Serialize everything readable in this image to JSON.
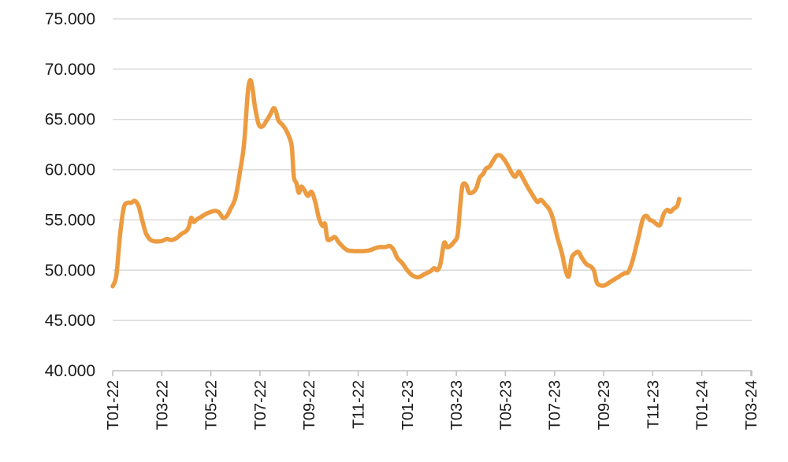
{
  "chart_data": {
    "type": "line",
    "title": "",
    "xlabel": "",
    "ylabel": "",
    "ylim": [
      40000,
      75000
    ],
    "yticks": [
      {
        "value": 40000,
        "label": "40.000"
      },
      {
        "value": 45000,
        "label": "45.000"
      },
      {
        "value": 50000,
        "label": "50.000"
      },
      {
        "value": 55000,
        "label": "55.000"
      },
      {
        "value": 60000,
        "label": "60.000"
      },
      {
        "value": 65000,
        "label": "65.000"
      },
      {
        "value": 70000,
        "label": "70.000"
      },
      {
        "value": 75000,
        "label": "75.000"
      }
    ],
    "xticks": [
      "T01-22",
      "T03-22",
      "T05-22",
      "T07-22",
      "T09-22",
      "T11-22",
      "T01-23",
      "T03-23",
      "T05-23",
      "T07-23",
      "T09-23",
      "T11-23",
      "T01-24",
      "T03-24"
    ],
    "x_range_months": [
      0,
      26.1
    ],
    "grid": true,
    "legend": "none",
    "color": "#ED9B40",
    "series": [
      {
        "points": [
          [
            0.0,
            48400
          ],
          [
            0.15,
            49500
          ],
          [
            0.3,
            53500
          ],
          [
            0.45,
            56200
          ],
          [
            0.6,
            56700
          ],
          [
            0.75,
            56700
          ],
          [
            0.9,
            56900
          ],
          [
            1.05,
            56400
          ],
          [
            1.2,
            55000
          ],
          [
            1.35,
            53700
          ],
          [
            1.5,
            53100
          ],
          [
            1.65,
            52900
          ],
          [
            1.8,
            52850
          ],
          [
            2.0,
            52900
          ],
          [
            2.2,
            53100
          ],
          [
            2.4,
            53000
          ],
          [
            2.6,
            53200
          ],
          [
            2.8,
            53600
          ],
          [
            3.0,
            53900
          ],
          [
            3.1,
            54300
          ],
          [
            3.2,
            55200
          ],
          [
            3.3,
            54800
          ],
          [
            3.4,
            55000
          ],
          [
            3.6,
            55300
          ],
          [
            3.8,
            55600
          ],
          [
            4.0,
            55800
          ],
          [
            4.2,
            55900
          ],
          [
            4.35,
            55700
          ],
          [
            4.5,
            55200
          ],
          [
            4.65,
            55400
          ],
          [
            4.8,
            56100
          ],
          [
            5.0,
            57200
          ],
          [
            5.2,
            60000
          ],
          [
            5.35,
            62500
          ],
          [
            5.5,
            67500
          ],
          [
            5.6,
            68900
          ],
          [
            5.7,
            68000
          ],
          [
            5.8,
            66200
          ],
          [
            5.95,
            64500
          ],
          [
            6.1,
            64300
          ],
          [
            6.25,
            64800
          ],
          [
            6.4,
            65400
          ],
          [
            6.55,
            66100
          ],
          [
            6.65,
            65800
          ],
          [
            6.75,
            64900
          ],
          [
            6.9,
            64500
          ],
          [
            7.05,
            64000
          ],
          [
            7.2,
            63200
          ],
          [
            7.3,
            62200
          ],
          [
            7.38,
            59300
          ],
          [
            7.48,
            58700
          ],
          [
            7.58,
            57700
          ],
          [
            7.68,
            58300
          ],
          [
            7.8,
            58000
          ],
          [
            7.95,
            57400
          ],
          [
            8.1,
            57800
          ],
          [
            8.25,
            56800
          ],
          [
            8.4,
            55200
          ],
          [
            8.55,
            54400
          ],
          [
            8.65,
            54600
          ],
          [
            8.75,
            53100
          ],
          [
            8.9,
            53100
          ],
          [
            9.05,
            53300
          ],
          [
            9.2,
            52800
          ],
          [
            9.35,
            52400
          ],
          [
            9.55,
            52000
          ],
          [
            9.8,
            51900
          ],
          [
            10.0,
            51900
          ],
          [
            10.25,
            51900
          ],
          [
            10.5,
            52000
          ],
          [
            10.7,
            52200
          ],
          [
            10.9,
            52300
          ],
          [
            11.1,
            52300
          ],
          [
            11.3,
            52400
          ],
          [
            11.45,
            52000
          ],
          [
            11.6,
            51200
          ],
          [
            11.8,
            50700
          ],
          [
            12.0,
            50000
          ],
          [
            12.2,
            49500
          ],
          [
            12.45,
            49300
          ],
          [
            12.7,
            49600
          ],
          [
            12.95,
            49900
          ],
          [
            13.1,
            50200
          ],
          [
            13.22,
            50000
          ],
          [
            13.35,
            50600
          ],
          [
            13.5,
            52700
          ],
          [
            13.62,
            52300
          ],
          [
            13.75,
            52400
          ],
          [
            13.9,
            52800
          ],
          [
            14.05,
            53500
          ],
          [
            14.15,
            56200
          ],
          [
            14.25,
            58400
          ],
          [
            14.4,
            58500
          ],
          [
            14.52,
            57700
          ],
          [
            14.7,
            57800
          ],
          [
            14.82,
            58200
          ],
          [
            14.95,
            59200
          ],
          [
            15.1,
            59600
          ],
          [
            15.2,
            60100
          ],
          [
            15.35,
            60300
          ],
          [
            15.5,
            60900
          ],
          [
            15.65,
            61400
          ],
          [
            15.8,
            61400
          ],
          [
            15.95,
            61000
          ],
          [
            16.1,
            60400
          ],
          [
            16.25,
            59700
          ],
          [
            16.4,
            59300
          ],
          [
            16.55,
            59800
          ],
          [
            16.7,
            59200
          ],
          [
            16.9,
            58300
          ],
          [
            17.1,
            57500
          ],
          [
            17.3,
            56800
          ],
          [
            17.45,
            57000
          ],
          [
            17.6,
            56600
          ],
          [
            17.8,
            56000
          ],
          [
            17.95,
            55000
          ],
          [
            18.1,
            53400
          ],
          [
            18.3,
            51700
          ],
          [
            18.45,
            50000
          ],
          [
            18.58,
            49400
          ],
          [
            18.7,
            51200
          ],
          [
            18.85,
            51700
          ],
          [
            18.98,
            51800
          ],
          [
            19.12,
            51200
          ],
          [
            19.3,
            50600
          ],
          [
            19.45,
            50400
          ],
          [
            19.6,
            50000
          ],
          [
            19.72,
            48800
          ],
          [
            19.85,
            48500
          ],
          [
            20.05,
            48500
          ],
          [
            20.25,
            48800
          ],
          [
            20.45,
            49100
          ],
          [
            20.65,
            49400
          ],
          [
            20.85,
            49700
          ],
          [
            21.0,
            49800
          ],
          [
            21.15,
            50700
          ],
          [
            21.3,
            52100
          ],
          [
            21.45,
            53600
          ],
          [
            21.6,
            55100
          ],
          [
            21.75,
            55400
          ],
          [
            21.88,
            55000
          ],
          [
            22.0,
            54900
          ],
          [
            22.15,
            54600
          ],
          [
            22.3,
            54500
          ],
          [
            22.45,
            55600
          ],
          [
            22.6,
            56000
          ],
          [
            22.72,
            55800
          ],
          [
            22.85,
            56100
          ],
          [
            23.0,
            56400
          ],
          [
            23.08,
            57100
          ]
        ]
      }
    ]
  }
}
